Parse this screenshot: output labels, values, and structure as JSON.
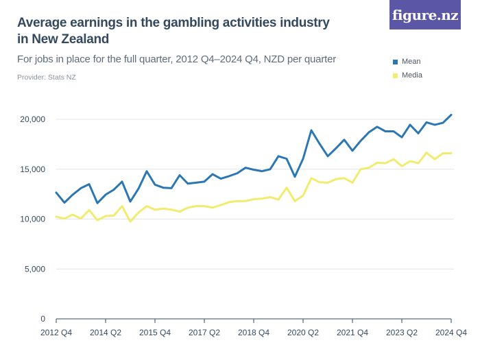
{
  "title": "Average earnings in the gambling activities industry in New Zealand",
  "subtitle": "For jobs in place for the full quarter, 2012 Q4–2024 Q4, NZD per quarter",
  "provider": "Provider: Stats NZ",
  "brand": "figure.nz",
  "colors": {
    "mean": "#2a77b4",
    "median": "#f1ec6e",
    "grid": "#e1e4e8",
    "axis": "#34495e"
  },
  "chart_data": {
    "type": "line",
    "xlabel": "",
    "ylabel": "",
    "ylim": [
      0,
      20000
    ],
    "yticks": [
      0,
      5000,
      10000,
      15000,
      20000
    ],
    "ytick_labels": [
      "0",
      "5,000",
      "10,000",
      "15,000",
      "20,000"
    ],
    "xtick_labels": [
      "2012 Q4",
      "2014 Q2",
      "2015 Q4",
      "2017 Q2",
      "2018 Q4",
      "2020 Q2",
      "2021 Q4",
      "2023 Q2",
      "2024 Q4"
    ],
    "legend_position": "top-right",
    "x": [
      "2012 Q4",
      "2013 Q1",
      "2013 Q2",
      "2013 Q3",
      "2013 Q4",
      "2014 Q1",
      "2014 Q2",
      "2014 Q3",
      "2014 Q4",
      "2015 Q1",
      "2015 Q2",
      "2015 Q3",
      "2015 Q4",
      "2016 Q1",
      "2016 Q2",
      "2016 Q3",
      "2016 Q4",
      "2017 Q1",
      "2017 Q2",
      "2017 Q3",
      "2017 Q4",
      "2018 Q1",
      "2018 Q2",
      "2018 Q3",
      "2018 Q4",
      "2019 Q1",
      "2019 Q2",
      "2019 Q3",
      "2019 Q4",
      "2020 Q1",
      "2020 Q2",
      "2020 Q3",
      "2020 Q4",
      "2021 Q1",
      "2021 Q2",
      "2021 Q3",
      "2021 Q4",
      "2022 Q1",
      "2022 Q2",
      "2022 Q3",
      "2022 Q4",
      "2023 Q1",
      "2023 Q2",
      "2023 Q3",
      "2023 Q4",
      "2024 Q1",
      "2024 Q2",
      "2024 Q3",
      "2024 Q4"
    ],
    "series": [
      {
        "name": "Mean",
        "values": [
          12650,
          11650,
          12450,
          13100,
          13500,
          11600,
          12450,
          12950,
          13750,
          11750,
          13050,
          14800,
          13450,
          13150,
          13100,
          14400,
          13550,
          13650,
          13750,
          14500,
          14050,
          14300,
          14600,
          15150,
          14950,
          14800,
          15000,
          16300,
          16050,
          14250,
          16050,
          18900,
          17550,
          16300,
          17100,
          17950,
          16850,
          17850,
          18700,
          19250,
          18800,
          18800,
          18200,
          19450,
          18600,
          19700,
          19450,
          19650,
          20450
        ]
      },
      {
        "name": "Media",
        "values": [
          10250,
          10050,
          10450,
          10050,
          10900,
          9900,
          10300,
          10350,
          11300,
          9750,
          10650,
          11300,
          10950,
          11050,
          10950,
          10750,
          11150,
          11300,
          11300,
          11150,
          11400,
          11700,
          11800,
          11800,
          12000,
          12050,
          12200,
          11950,
          13150,
          11800,
          12350,
          14100,
          13700,
          13650,
          14000,
          14100,
          13650,
          15000,
          15150,
          15650,
          15600,
          16000,
          15300,
          15800,
          15600,
          16650,
          16000,
          16600,
          16600
        ]
      }
    ]
  }
}
